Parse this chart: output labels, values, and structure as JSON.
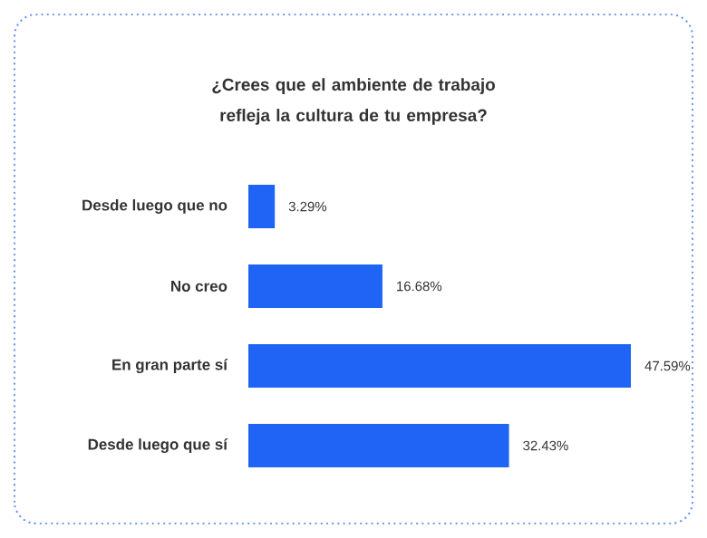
{
  "chart_data": {
    "type": "bar",
    "orientation": "horizontal",
    "title": "¿Crees que el ambiente de trabajo refleja la cultura de tu empresa?",
    "categories": [
      "Desde luego que no",
      "No creo",
      "En gran parte sí",
      "Desde luego que sí"
    ],
    "values": [
      3.29,
      16.68,
      47.59,
      32.43
    ],
    "value_labels": [
      "3.29%",
      "16.68%",
      "47.59%",
      "32.43%"
    ],
    "color": "#1f64f4"
  }
}
